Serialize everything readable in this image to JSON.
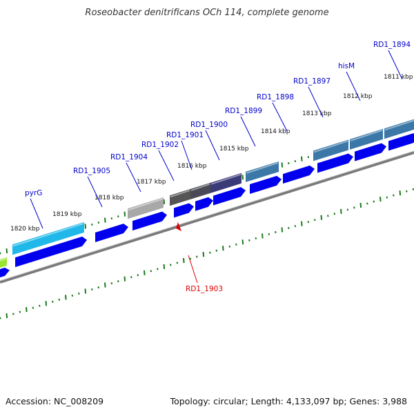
{
  "title": "Roseobacter denitrificans OCh 114, complete genome",
  "footer": {
    "accession": "Accession: NC_008209",
    "topology": "Topology: circular; Length: 4,133,097 bp; Genes: 3,988"
  },
  "ticks": [
    "1820 kbp",
    "1819 kbp",
    "1818 kbp",
    "1817 kbp",
    "1816 kbp",
    "1815 kbp",
    "1814 kbp",
    "1813 kbp",
    "1812 kbp",
    "1811 kbp"
  ],
  "genes": [
    "pyrG",
    "RD1_1905",
    "RD1_1904",
    "RD1_1902",
    "RD1_1901",
    "RD1_1900",
    "RD1_1899",
    "RD1_1898",
    "RD1_1897",
    "hisM",
    "RD1_1894"
  ],
  "highlight_gene": "RD1_1903",
  "colors": {
    "label_blue": "#0000cc",
    "highlight_red": "#dd0000",
    "cds_blue": "#0000ee",
    "backbone": "#7a7a7a",
    "tick_green": "#1a7a1a"
  }
}
